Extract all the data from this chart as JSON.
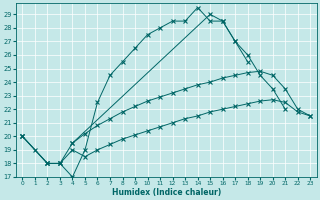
{
  "xlabel": "Humidex (Indice chaleur)",
  "bg_color": "#c5e8e8",
  "line_color": "#006666",
  "xlim": [
    -0.5,
    23.5
  ],
  "ylim": [
    17,
    29.8
  ],
  "yticks": [
    17,
    18,
    19,
    20,
    21,
    22,
    23,
    24,
    25,
    26,
    27,
    28,
    29
  ],
  "xticks": [
    0,
    1,
    2,
    3,
    4,
    5,
    6,
    7,
    8,
    9,
    10,
    11,
    12,
    13,
    14,
    15,
    16,
    17,
    18,
    19,
    20,
    21,
    22,
    23
  ],
  "line1_x": [
    0,
    1,
    2,
    3,
    4,
    5,
    6,
    7,
    8,
    9,
    10,
    11,
    12,
    13,
    14,
    15,
    16,
    17,
    18
  ],
  "line1_y": [
    20,
    19,
    18,
    18,
    17,
    19,
    22.5,
    24.5,
    25.5,
    26.5,
    27.5,
    28.0,
    28.5,
    28.5,
    29.5,
    28.5,
    28.5,
    27.0,
    25.5
  ],
  "line2_x": [
    4,
    15,
    16,
    17,
    18,
    19,
    20,
    21
  ],
  "line2_y": [
    19.5,
    29.0,
    28.5,
    27.0,
    26.0,
    24.5,
    23.5,
    22.0
  ],
  "line3_x": [
    0,
    2,
    3,
    4,
    5,
    6,
    7,
    8,
    9,
    10,
    11,
    12,
    13,
    14,
    15,
    16,
    17,
    18,
    19,
    20,
    21,
    22,
    23
  ],
  "line3_y": [
    20,
    18,
    18,
    19.5,
    20.2,
    20.8,
    21.3,
    21.8,
    22.2,
    22.6,
    22.9,
    23.2,
    23.5,
    23.8,
    24.0,
    24.3,
    24.5,
    24.7,
    24.8,
    24.5,
    23.5,
    22.0,
    21.5
  ],
  "line4_x": [
    0,
    2,
    3,
    4,
    5,
    6,
    7,
    8,
    9,
    10,
    11,
    12,
    13,
    14,
    15,
    16,
    17,
    18,
    19,
    20,
    21,
    22,
    23
  ],
  "line4_y": [
    20,
    18,
    18,
    19.0,
    18.5,
    19.0,
    19.4,
    19.8,
    20.1,
    20.4,
    20.7,
    21.0,
    21.3,
    21.5,
    21.8,
    22.0,
    22.2,
    22.4,
    22.6,
    22.7,
    22.5,
    21.8,
    21.5
  ]
}
